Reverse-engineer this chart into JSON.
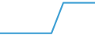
{
  "x": [
    0,
    55,
    65,
    80,
    100,
    120
  ],
  "y": [
    0.05,
    0.05,
    0.05,
    0.92,
    0.92,
    0.92
  ],
  "line_color": "#3c9fd4",
  "linewidth": 1.5,
  "background_color": "#ffffff",
  "ylim": [
    0,
    1
  ],
  "xlim": [
    0,
    120
  ]
}
